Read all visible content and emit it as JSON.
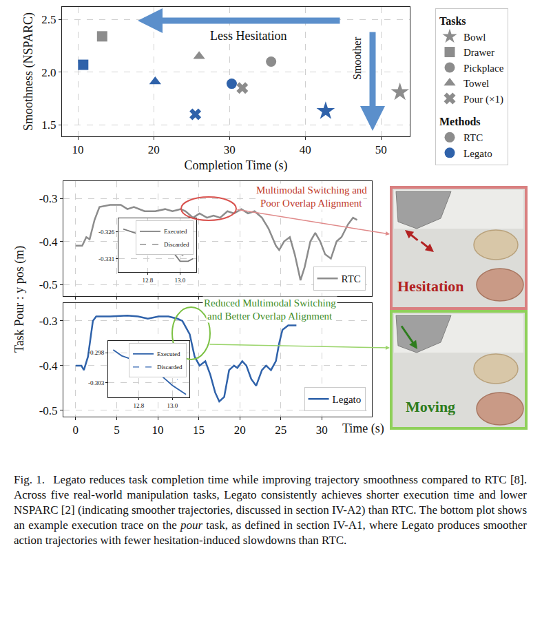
{
  "chart_data": [
    {
      "type": "scatter",
      "xlabel": "Completion Time (s)",
      "ylabel": "Smoothness (NSPARC)",
      "xlim": [
        7.9,
        53.8
      ],
      "xticks": [
        10,
        20,
        30,
        40,
        50
      ],
      "ylim": [
        1.39,
        2.62
      ],
      "yticks": [
        1.5,
        {
          "value": 2.0,
          "label": "2.0"
        },
        2.5
      ],
      "grid": true,
      "legend": "right",
      "series_title": "Tasks",
      "methods_title": "Methods",
      "methods": [
        {
          "name": "RTC",
          "color": "#8c8c8c"
        },
        {
          "name": "Legato",
          "color": "#2f62aa"
        }
      ],
      "series": [
        {
          "name": "Bowl",
          "marker": "star",
          "x": [
            52.5,
            42.7
          ],
          "values": [
            1.81,
            1.63
          ]
        },
        {
          "name": "Drawer",
          "marker": "square",
          "x": [
            13.2,
            10.7
          ],
          "values": [
            2.34,
            2.07
          ]
        },
        {
          "name": "Pickplace",
          "marker": "circle",
          "x": [
            35.5,
            30.3
          ],
          "values": [
            2.1,
            1.89
          ]
        },
        {
          "name": "Towel",
          "marker": "triangle",
          "x": [
            26.0,
            20.2
          ],
          "values": [
            2.15,
            1.91
          ]
        },
        {
          "name": "Pour (×1)",
          "marker": "x",
          "x": [
            31.7,
            25.5
          ],
          "values": [
            1.85,
            1.6
          ]
        }
      ],
      "annotations": [
        "Less Hesitation",
        "Smoother"
      ]
    },
    {
      "type": "line",
      "xlim": [
        -1.5,
        36.1
      ],
      "xticks": [
        0,
        5,
        10,
        15,
        20,
        25,
        30
      ],
      "ylim": [
        -0.527,
        -0.26
      ],
      "yticks": [
        -0.3,
        -0.4,
        -0.5
      ],
      "grid": true,
      "legend": "lower right",
      "tick_labels": "y",
      "series": [
        {
          "name": "RTC",
          "color": "#8c8c8c",
          "x": [
            0,
            0.8,
            1.3,
            1.7,
            2.3,
            2.9,
            4.2,
            5.5,
            6.3,
            7.1,
            8.4,
            9.7,
            10.9,
            11.8,
            12.8,
            13.4,
            14.3,
            15.1,
            16.0,
            16.8,
            17.6,
            18.5,
            19.3,
            20.2,
            21.0,
            21.8,
            22.7,
            23.5,
            24.4,
            24.8,
            25.4,
            26.1,
            26.7,
            27.4,
            27.9,
            28.6,
            29.2,
            29.8,
            30.4,
            31.1,
            31.8,
            32.4,
            33.2,
            33.8,
            34.3
          ],
          "values": [
            -0.41,
            -0.41,
            -0.39,
            -0.395,
            -0.35,
            -0.32,
            -0.315,
            -0.315,
            -0.325,
            -0.32,
            -0.33,
            -0.33,
            -0.325,
            -0.33,
            -0.325,
            -0.33,
            -0.345,
            -0.335,
            -0.345,
            -0.34,
            -0.345,
            -0.33,
            -0.335,
            -0.325,
            -0.335,
            -0.33,
            -0.345,
            -0.37,
            -0.41,
            -0.42,
            -0.4,
            -0.39,
            -0.43,
            -0.49,
            -0.46,
            -0.4,
            -0.38,
            -0.4,
            -0.43,
            -0.44,
            -0.4,
            -0.39,
            -0.36,
            -0.345,
            -0.35
          ]
        }
      ],
      "annotations": [
        "Multimodal Switching and",
        "Poor Overlap Alignment"
      ],
      "inset": {
        "type": "line",
        "xlim": [
          12.62,
          13.1
        ],
        "xticks": [
          12.8,
          {
            "value": 13.0,
            "label": "13.0"
          }
        ],
        "ylim": [
          -0.3335,
          -0.3235
        ],
        "yticks": [
          -0.326,
          -0.331
        ],
        "grid": true,
        "legend": "upper right",
        "series": [
          {
            "name": "Executed",
            "color": "#7a7a7a",
            "line_style": "solid",
            "x": [
              12.65,
              12.75,
              12.85,
              12.9,
              12.95,
              13.0,
              13.05,
              13.08
            ],
            "values": [
              -0.3255,
              -0.3265,
              -0.3275,
              -0.3285,
              -0.3295,
              -0.3315,
              -0.3315,
              -0.331
            ]
          },
          {
            "name": "Discarded",
            "color": "#a0a0a0",
            "line_style": "dash",
            "x": [
              12.75,
              12.85,
              12.92,
              12.98,
              13.02
            ],
            "values": [
              -0.3255,
              -0.326,
              -0.3275,
              -0.3295,
              -0.3305
            ]
          }
        ]
      }
    },
    {
      "type": "line",
      "xlabel": "Time (s)",
      "xlim": [
        -1.5,
        36.1
      ],
      "xticks": [
        0,
        5,
        10,
        15,
        20,
        25,
        30
      ],
      "ylim": [
        -0.514,
        -0.26
      ],
      "yticks": [
        -0.3,
        -0.4,
        -0.5
      ],
      "grid": true,
      "legend": "lower right",
      "series": [
        {
          "name": "Legato",
          "color": "#2f62aa",
          "x": [
            0,
            0.7,
            1.0,
            1.5,
            2.1,
            2.5,
            4.2,
            6.3,
            7.6,
            8.8,
            10.1,
            11.3,
            12.4,
            13.0,
            13.9,
            14.5,
            15.1,
            15.8,
            16.4,
            17.0,
            17.5,
            18.1,
            18.7,
            19.3,
            19.7,
            20.3,
            20.8,
            21.4,
            22.0,
            22.7,
            23.2,
            23.8,
            24.4,
            24.8,
            25.2,
            25.9,
            26.9
          ],
          "values": [
            -0.4,
            -0.4,
            -0.41,
            -0.38,
            -0.3,
            -0.29,
            -0.29,
            -0.288,
            -0.29,
            -0.295,
            -0.29,
            -0.29,
            -0.295,
            -0.3,
            -0.33,
            -0.38,
            -0.4,
            -0.39,
            -0.42,
            -0.46,
            -0.48,
            -0.47,
            -0.41,
            -0.4,
            -0.405,
            -0.39,
            -0.4,
            -0.43,
            -0.445,
            -0.41,
            -0.4,
            -0.41,
            -0.39,
            -0.35,
            -0.32,
            -0.31,
            -0.31
          ]
        }
      ],
      "annotations": [
        "Reduced Multimodal Switching",
        "and Better Overlap Alignment"
      ],
      "inset": {
        "type": "line",
        "xlim": [
          12.62,
          13.1
        ],
        "xticks": [
          12.8,
          {
            "value": 13.0,
            "label": "13.0"
          }
        ],
        "ylim": [
          -0.3055,
          -0.296
        ],
        "yticks": [
          -0.298,
          -0.303
        ],
        "grid": true,
        "legend": "upper right",
        "series": [
          {
            "name": "Executed",
            "color": "#2f62aa",
            "line_style": "solid",
            "x": [
              12.65,
              12.7,
              12.8,
              12.9,
              13.0,
              13.08
            ],
            "values": [
              -0.2975,
              -0.2985,
              -0.2995,
              -0.301,
              -0.3035,
              -0.305
            ]
          },
          {
            "name": "Discarded",
            "color": "#6f93c8",
            "line_style": "dash",
            "x": [
              12.9,
              12.95,
              13.0,
              13.03
            ],
            "values": [
              -0.3005,
              -0.301,
              -0.302,
              -0.3025
            ]
          }
        ]
      }
    }
  ],
  "figure": {
    "shared_ylabel": "Task Pour : y pos (m)",
    "photos": [
      "Hesitation",
      "Moving"
    ],
    "caption": {
      "label": "Fig. 1.",
      "before": "Legato reduces task completion time while improving trajectory smoothness compared to RTC [8]. Across five real-world manipulation tasks, Legato consistently achieves shorter execution time and lower NSPARC [2] (indicating smoother trajectories, discussed in section IV-A2) than RTC. The bottom plot shows an example execution trace on the",
      "italic": "pour",
      "after": "task, as defined in section IV-A1, where Legato produces smoother action trajectories with fewer hesitation-induced slowdowns than RTC."
    }
  }
}
